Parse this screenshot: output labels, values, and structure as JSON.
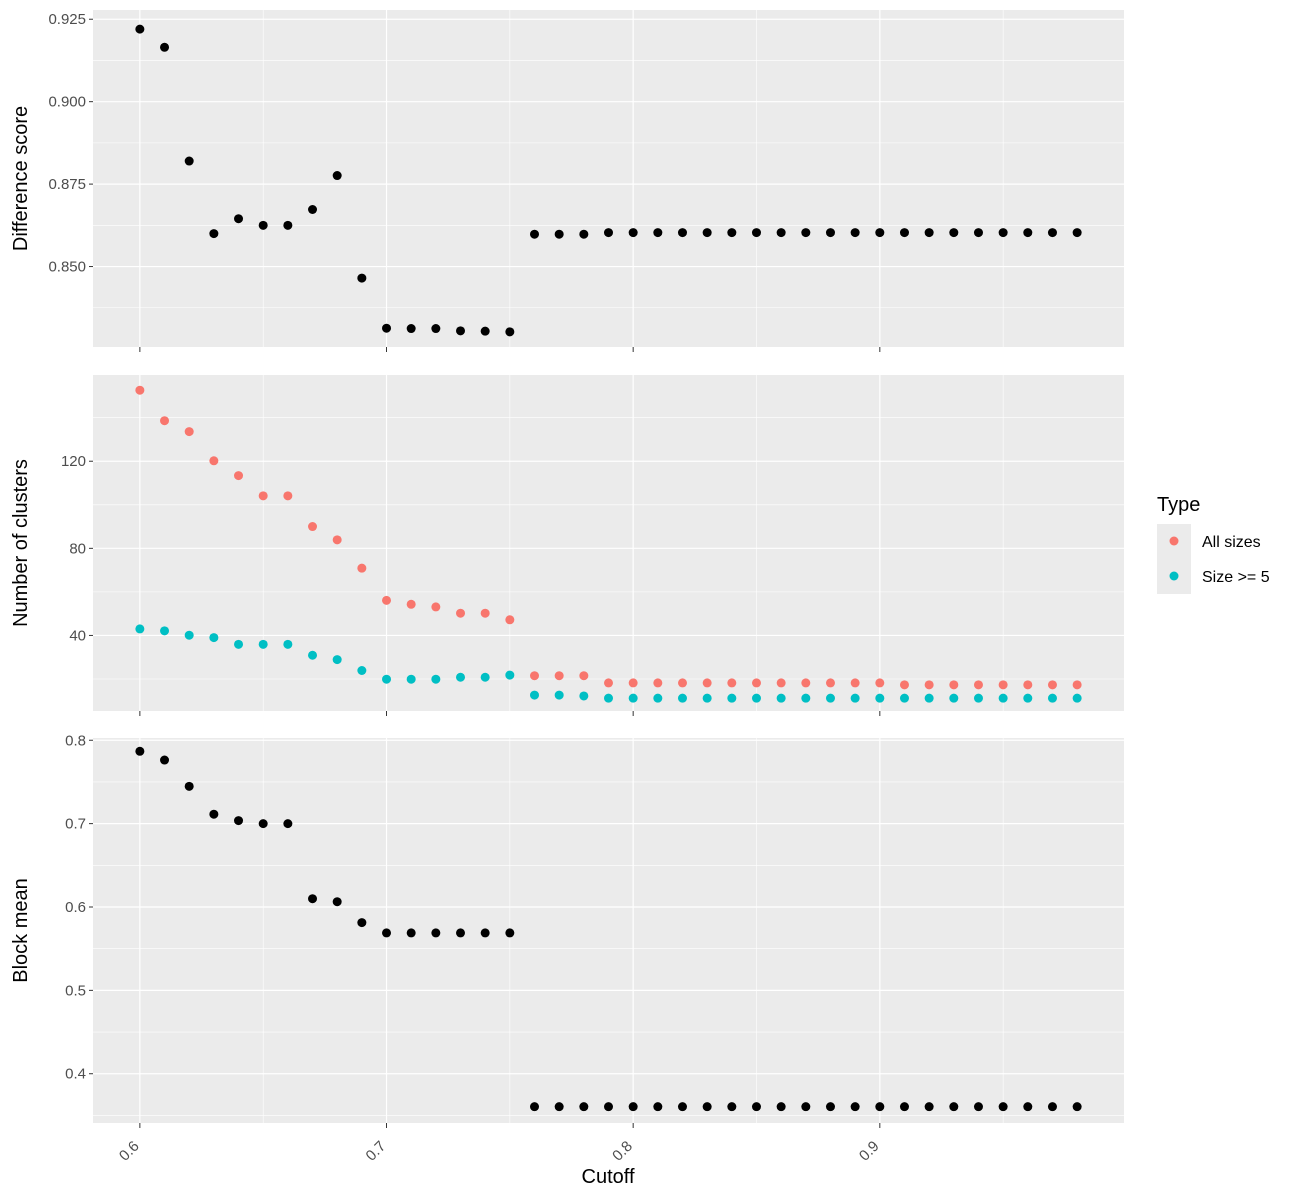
{
  "colors": {
    "panel_bg": "#ebebeb",
    "grid": "#ffffff",
    "tick": "#333333",
    "points_black": "#000000",
    "all_sizes": "#f8766d",
    "size_ge_5": "#00bfc4"
  },
  "legend": {
    "title": "Type",
    "items": [
      {
        "label": "All sizes",
        "color": "#f8766d"
      },
      {
        "label": "Size >= 5",
        "color": "#00bfc4"
      }
    ]
  },
  "chart_data": {
    "type": "scatter",
    "layout": "faceted-vertical",
    "xlabel": "Cutoff",
    "x": [
      0.6,
      0.61,
      0.62,
      0.63,
      0.64,
      0.65,
      0.66,
      0.67,
      0.68,
      0.69,
      0.7,
      0.71,
      0.72,
      0.73,
      0.74,
      0.75,
      0.76,
      0.77,
      0.78,
      0.79,
      0.8,
      0.81,
      0.82,
      0.83,
      0.84,
      0.85,
      0.86,
      0.87,
      0.88,
      0.89,
      0.9,
      0.91,
      0.92,
      0.93,
      0.94,
      0.95,
      0.96,
      0.97,
      0.98
    ],
    "xticks": [
      0.6,
      0.7,
      0.8,
      0.9
    ],
    "xtick_labels": [
      "0.6",
      "0.7",
      "0.8",
      "0.9"
    ],
    "xlim": [
      0.581,
      0.999
    ],
    "grid": true,
    "legend_position": "right",
    "panels": [
      {
        "ylabel": "Difference score",
        "ylim": [
          0.8256,
          0.9278
        ],
        "yticks": [
          0.925,
          0.9,
          0.875,
          0.85
        ],
        "ytick_labels": [
          "0.925",
          "0.900",
          "0.875",
          "0.850"
        ],
        "series": [
          {
            "color_key": "points_black",
            "values": [
              0.922,
              0.9165,
              0.882,
              0.86,
              0.8645,
              0.8625,
              0.8625,
              0.8673,
              0.8776,
              0.8465,
              0.8313,
              0.8312,
              0.8312,
              0.8305,
              0.8304,
              0.8302,
              0.8598,
              0.8598,
              0.8598,
              0.8603,
              0.8603,
              0.8603,
              0.8603,
              0.8603,
              0.8603,
              0.8603,
              0.8603,
              0.8603,
              0.8603,
              0.8603,
              0.8603,
              0.8603,
              0.8603,
              0.8603,
              0.8603,
              0.8603,
              0.8603,
              0.8603,
              0.8603
            ]
          }
        ]
      },
      {
        "ylabel": "Number of clusters",
        "ylim": [
          5.3,
          159.6
        ],
        "yticks": [
          120,
          80,
          40
        ],
        "ytick_labels": [
          "120",
          "80",
          "40"
        ],
        "series": [
          {
            "name": "All sizes",
            "color_key": "all_sizes",
            "values": [
              152.6,
              138.6,
              133.6,
              120.2,
              113.4,
              104.1,
              104.1,
              90,
              83.9,
              70.9,
              56.1,
              54.3,
              53.1,
              50.2,
              50.2,
              47.2,
              21.5,
              21.5,
              21.5,
              18.2,
              18.2,
              18.2,
              18.2,
              18.2,
              18.2,
              18.2,
              18.2,
              18.2,
              18.2,
              18.2,
              18.2,
              17.3,
              17.3,
              17.3,
              17.3,
              17.3,
              17.3,
              17.3,
              17.3
            ]
          },
          {
            "name": "Size >= 5",
            "color_key": "size_ge_5",
            "values": [
              43,
              42.1,
              40.1,
              39,
              35.9,
              35.9,
              35.9,
              30.9,
              28.9,
              23.9,
              19.9,
              19.9,
              19.9,
              20.8,
              20.8,
              21.8,
              12.6,
              12.6,
              12.2,
              11.2,
              11.2,
              11.2,
              11.2,
              11.2,
              11.2,
              11.2,
              11.2,
              11.2,
              11.2,
              11.2,
              11.2,
              11.2,
              11.2,
              11.2,
              11.2,
              11.2,
              11.2,
              11.2,
              11.2
            ]
          }
        ]
      },
      {
        "ylabel": "Block mean",
        "ylim": [
          0.3409,
          0.8027
        ],
        "yticks": [
          0.8,
          0.7,
          0.6,
          0.5,
          0.4
        ],
        "ytick_labels": [
          "0.8",
          "0.7",
          "0.6",
          "0.5",
          "0.4"
        ],
        "series": [
          {
            "color_key": "points_black",
            "values": [
              0.7868,
              0.7763,
              0.7447,
              0.7113,
              0.7036,
              0.7,
              0.7,
              0.6099,
              0.6063,
              0.5813,
              0.5689,
              0.5689,
              0.5689,
              0.5689,
              0.5689,
              0.5689,
              0.3605,
              0.3605,
              0.3605,
              0.3605,
              0.3605,
              0.3605,
              0.3605,
              0.3605,
              0.3605,
              0.3605,
              0.3605,
              0.3605,
              0.3605,
              0.3605,
              0.3605,
              0.3605,
              0.3605,
              0.3605,
              0.3605,
              0.3605,
              0.3605,
              0.3605,
              0.3605
            ]
          }
        ]
      }
    ]
  }
}
